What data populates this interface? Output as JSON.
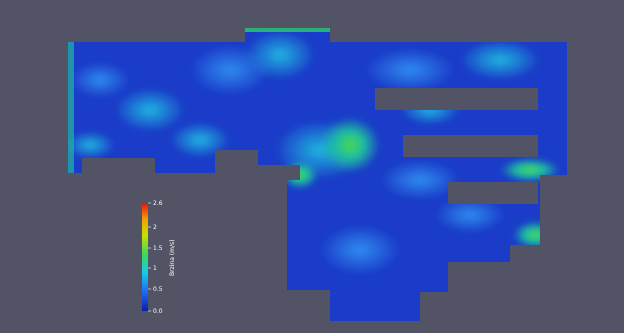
{
  "viewer": {
    "background": "#525466",
    "field_name": "Brzina  (m/s)"
  },
  "colorbar": {
    "title": "Brzina  (m/s)",
    "ticks": [
      "2.6",
      "2",
      "1.5",
      "1",
      "0.5",
      "0.0"
    ],
    "colormap": [
      "#0a1ea8",
      "#1f6cf0",
      "#19c8e8",
      "#39d860",
      "#c8e000",
      "#f0a000",
      "#e81010"
    ]
  }
}
